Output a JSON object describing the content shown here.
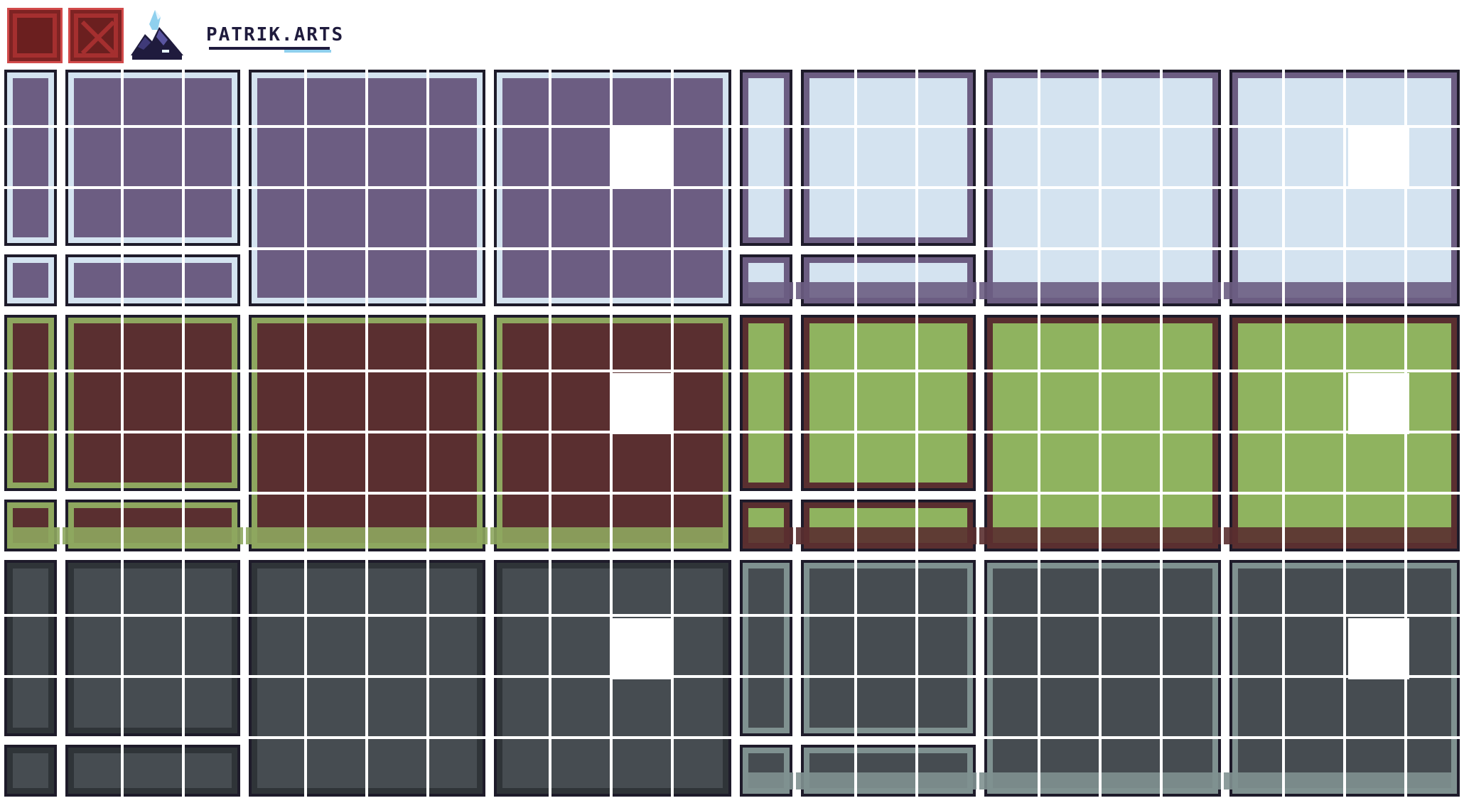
{
  "header": {
    "brand_text": "PATRIK.ARTS",
    "tiles": [
      {
        "name": "red-empty-tile",
        "icon": "solid-tile-icon"
      },
      {
        "name": "red-crossed-tile",
        "icon": "x-mark-icon"
      }
    ],
    "logo_icon": "crystal-mountain-logo-icon"
  },
  "tileset": {
    "rows": 4,
    "themes": [
      {
        "name": "stone-castle",
        "fill": "#6c5d82",
        "edge": "#d4e3f0",
        "outline": "#1e1b2a"
      },
      {
        "name": "snow",
        "fill": "#d4e3f0",
        "edge": "#6c5d82",
        "outline": "#1e1b2a"
      },
      {
        "name": "dirt",
        "fill": "#5a2f30",
        "edge": "#8ea75f",
        "outline": "#1e1b2a"
      },
      {
        "name": "grass",
        "fill": "#8fb35f",
        "edge": "#5a2f30",
        "outline": "#1e1b2a"
      },
      {
        "name": "dark-stone",
        "fill": "#464c51",
        "edge": "#2f3438",
        "outline": "#1e1b2a"
      },
      {
        "name": "dark-brick",
        "fill": "#464c51",
        "edge": "#7f9190",
        "outline": "#1e1b2a"
      }
    ],
    "grid_color": "#ffffff",
    "blank_highlight": "#ffffff"
  }
}
